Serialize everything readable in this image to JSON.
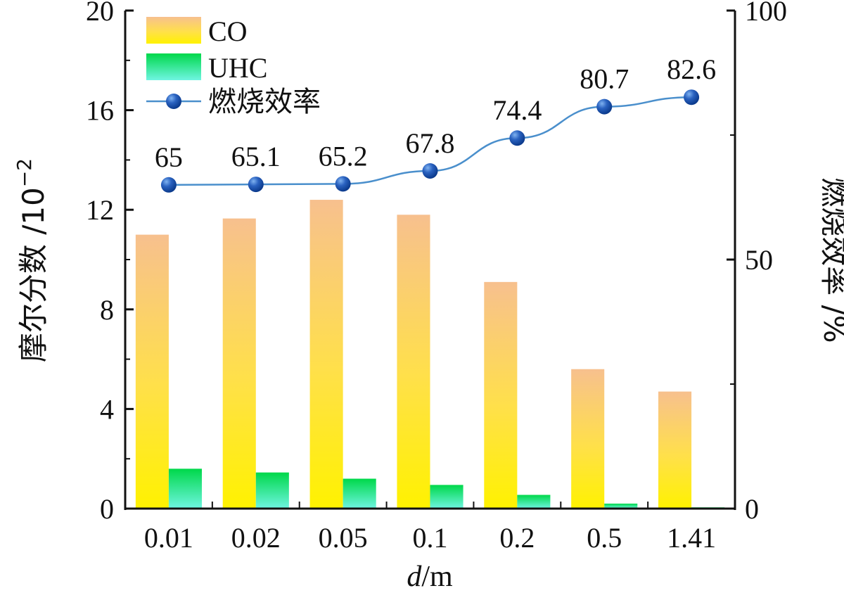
{
  "chart_data": {
    "type": "bar",
    "categories": [
      "0.01",
      "0.02",
      "0.05",
      "0.1",
      "0.2",
      "0.5",
      "1.41"
    ],
    "series": [
      {
        "name": "CO",
        "axis": "left",
        "kind": "bar",
        "values": [
          11.0,
          11.65,
          12.4,
          11.8,
          9.1,
          5.6,
          4.7
        ]
      },
      {
        "name": "UHC",
        "axis": "left",
        "kind": "bar",
        "values": [
          1.6,
          1.45,
          1.2,
          0.95,
          0.55,
          0.2,
          0.05
        ]
      },
      {
        "name": "燃烧效率",
        "axis": "right",
        "kind": "line",
        "values": [
          65,
          65.1,
          65.2,
          67.8,
          74.4,
          80.7,
          82.6
        ]
      }
    ],
    "data_labels": [
      "65",
      "65.1",
      "65.2",
      "67.8",
      "74.4",
      "80.7",
      "82.6"
    ],
    "ylim": [
      0,
      20
    ],
    "yticks": [
      "0",
      "4",
      "8",
      "12",
      "16",
      "20"
    ],
    "y2lim": [
      0,
      100
    ],
    "y2ticks": [
      "0",
      "50",
      "100"
    ],
    "xlabel_italic": "d",
    "xlabel_unit": "/m",
    "ylabel_text": "摩尔分数 /10",
    "ylabel_exp": "−2",
    "y2label": "燃烧效率 /%",
    "legend": [
      "CO",
      "UHC",
      "燃烧效率"
    ],
    "legend_position": "top-left",
    "colors": {
      "co_top": "#F7C08E",
      "co_bottom": "#FFF200",
      "uhc_top": "#00D84A",
      "uhc_bottom": "#6FF5E2",
      "line": "#4A8FCC",
      "marker_light": "#7FB2F0",
      "marker_dark": "#0B3A8C",
      "axis": "#111111"
    }
  }
}
